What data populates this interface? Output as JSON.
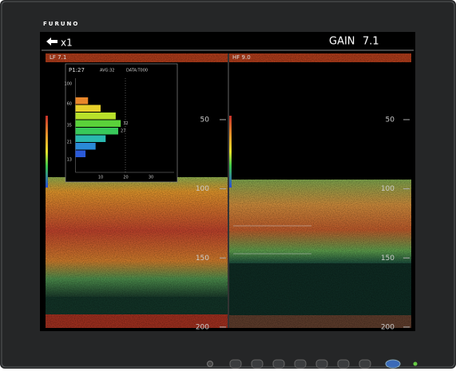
{
  "brand": "FURUNO",
  "header": {
    "zoom": "x1",
    "gain_label": "GAIN",
    "gain_value": "7.1"
  },
  "panels": [
    {
      "label": "LF 7.1"
    },
    {
      "label": "HF 9.0"
    }
  ],
  "depth_ticks": [
    50,
    100,
    150,
    200
  ],
  "histogram": {
    "header": [
      "P1:27",
      "AVG:32",
      "DATA:T000"
    ],
    "y_labels": [
      "100",
      "60",
      "35",
      "21",
      "13"
    ],
    "xticks": [
      10,
      20,
      30
    ],
    "values": [
      5,
      10,
      16,
      18,
      17,
      12,
      8,
      4
    ],
    "colors": [
      "#e8862a",
      "#e8d02a",
      "#b8e02a",
      "#5ad23a",
      "#38c85a",
      "#2ab8b0",
      "#2a8ad8",
      "#2a5ad8"
    ],
    "annotations": [
      "32",
      "27"
    ]
  }
}
